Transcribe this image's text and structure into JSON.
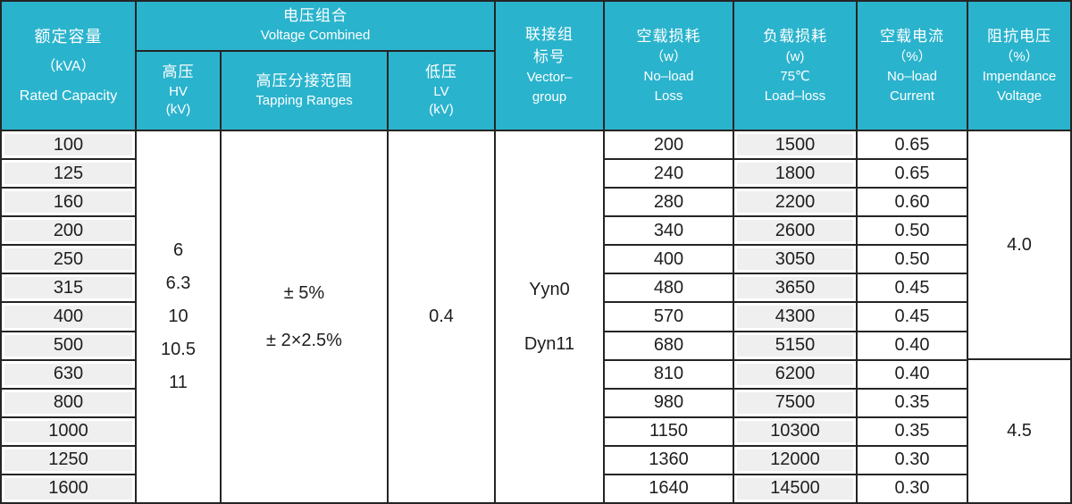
{
  "table": {
    "header": {
      "rated_capacity": {
        "zh": "额定容量",
        "unit": "（kVA）",
        "en": "Rated Capacity"
      },
      "voltage_combined": {
        "zh": "电压组合",
        "en": "Voltage Combined"
      },
      "hv": {
        "zh": "高压",
        "en": "HV",
        "unit": "(kV)"
      },
      "tapping": {
        "zh": "高压分接范围",
        "en": "Tapping Ranges"
      },
      "lv": {
        "zh": "低压",
        "en": "LV",
        "unit": "(kV)"
      },
      "vector_group": {
        "zh1": "联接组",
        "zh2": "标号",
        "en1": "Vector–",
        "en2": "group"
      },
      "no_load_loss": {
        "zh": "空载损耗",
        "unit": "（w）",
        "en1": "No–load",
        "en2": "Loss"
      },
      "load_loss": {
        "zh": "负载损耗",
        "unit": "(w)",
        "temp": "75℃",
        "en": "Load–loss"
      },
      "no_load_current": {
        "zh": "空载电流",
        "unit": "（%）",
        "en1": "No–load",
        "en2": "Current"
      },
      "impedance_voltage": {
        "zh": "阻抗电压",
        "unit": "（%）",
        "en1": "Impendance",
        "en2": "Voltage"
      }
    },
    "shared": {
      "hv_values": [
        "6",
        "6.3",
        "10",
        "10.5",
        "11"
      ],
      "tapping_values": [
        "± 5%",
        "± 2×2.5%"
      ],
      "lv_value": "0.4",
      "vector_values": [
        "Yyn0",
        "Dyn11"
      ],
      "impedance_values": [
        {
          "value": "4.0",
          "row_span": 8,
          "rows": "100–500"
        },
        {
          "value": "4.5",
          "row_span": 5,
          "rows": "630–1600"
        }
      ]
    },
    "rows": [
      {
        "capacity": "100",
        "no_load_loss": "200",
        "load_loss": "1500",
        "no_load_current": "0.65"
      },
      {
        "capacity": "125",
        "no_load_loss": "240",
        "load_loss": "1800",
        "no_load_current": "0.65"
      },
      {
        "capacity": "160",
        "no_load_loss": "280",
        "load_loss": "2200",
        "no_load_current": "0.60"
      },
      {
        "capacity": "200",
        "no_load_loss": "340",
        "load_loss": "2600",
        "no_load_current": "0.50"
      },
      {
        "capacity": "250",
        "no_load_loss": "400",
        "load_loss": "3050",
        "no_load_current": "0.50"
      },
      {
        "capacity": "315",
        "no_load_loss": "480",
        "load_loss": "3650",
        "no_load_current": "0.45"
      },
      {
        "capacity": "400",
        "no_load_loss": "570",
        "load_loss": "4300",
        "no_load_current": "0.45"
      },
      {
        "capacity": "500",
        "no_load_loss": "680",
        "load_loss": "5150",
        "no_load_current": "0.40"
      },
      {
        "capacity": "630",
        "no_load_loss": "810",
        "load_loss": "6200",
        "no_load_current": "0.40"
      },
      {
        "capacity": "800",
        "no_load_loss": "980",
        "load_loss": "7500",
        "no_load_current": "0.35"
      },
      {
        "capacity": "1000",
        "no_load_loss": "1150",
        "load_loss": "10300",
        "no_load_current": "0.35"
      },
      {
        "capacity": "1250",
        "no_load_loss": "1360",
        "load_loss": "12000",
        "no_load_current": "0.30"
      },
      {
        "capacity": "1600",
        "no_load_loss": "1640",
        "load_loss": "14500",
        "no_load_current": "0.30"
      }
    ],
    "colors": {
      "header_bg": "#2ab3cd",
      "cell_gray": "#efefef",
      "border": "#242424",
      "header_text": "#ffffff"
    }
  }
}
